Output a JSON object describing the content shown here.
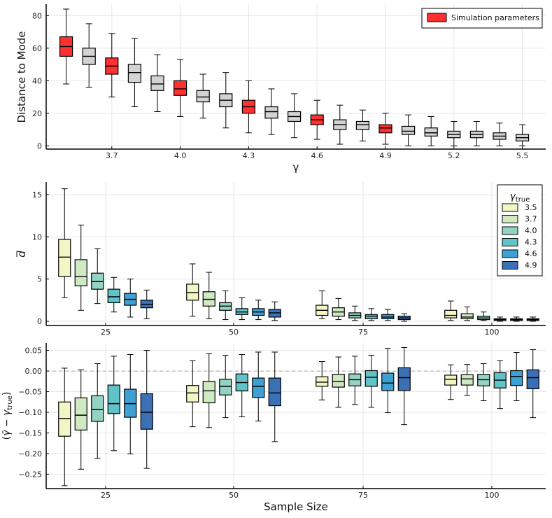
{
  "chart_data": [
    {
      "type": "box",
      "xlabel": "γ",
      "ylabel": "Distance to Mode",
      "ylim": [
        -2,
        87
      ],
      "yticks": [
        0,
        20,
        40,
        60,
        80
      ],
      "xticks": [
        "3.7",
        "4.0",
        "4.3",
        "4.6",
        "4.9",
        "5.2",
        "5.5"
      ],
      "legend": {
        "label": "Simulation parameters",
        "color": "#ff3030",
        "position": "top-right"
      },
      "highlight_color": "#ff3030",
      "default_color": "#d3d3d3",
      "boxes": [
        {
          "gamma": 3.5,
          "min": 38,
          "q1": 55,
          "median": 61,
          "q3": 67,
          "max": 84,
          "highlight": true
        },
        {
          "gamma": 3.6,
          "min": 36,
          "q1": 50,
          "median": 55,
          "q3": 60,
          "max": 75,
          "highlight": false
        },
        {
          "gamma": 3.7,
          "min": 30,
          "q1": 44,
          "median": 49,
          "q3": 54,
          "max": 69,
          "highlight": true
        },
        {
          "gamma": 3.8,
          "min": 24,
          "q1": 39,
          "median": 45,
          "q3": 50,
          "max": 66,
          "highlight": false
        },
        {
          "gamma": 3.9,
          "min": 21,
          "q1": 34,
          "median": 38,
          "q3": 43,
          "max": 56,
          "highlight": false
        },
        {
          "gamma": 4.0,
          "min": 18,
          "q1": 31,
          "median": 35,
          "q3": 40,
          "max": 53,
          "highlight": true
        },
        {
          "gamma": 4.1,
          "min": 17,
          "q1": 27,
          "median": 30,
          "q3": 34,
          "max": 44,
          "highlight": false
        },
        {
          "gamma": 4.2,
          "min": 11,
          "q1": 24,
          "median": 28,
          "q3": 32,
          "max": 45,
          "highlight": false
        },
        {
          "gamma": 4.3,
          "min": 8,
          "q1": 20,
          "median": 24,
          "q3": 28,
          "max": 40,
          "highlight": true
        },
        {
          "gamma": 4.4,
          "min": 7,
          "q1": 17,
          "median": 21,
          "q3": 24,
          "max": 35,
          "highlight": false
        },
        {
          "gamma": 4.5,
          "min": 5,
          "q1": 15,
          "median": 18,
          "q3": 21,
          "max": 32,
          "highlight": false
        },
        {
          "gamma": 4.6,
          "min": 4,
          "q1": 13,
          "median": 16,
          "q3": 19,
          "max": 28,
          "highlight": true
        },
        {
          "gamma": 4.7,
          "min": 1,
          "q1": 10,
          "median": 13,
          "q3": 16,
          "max": 25,
          "highlight": false
        },
        {
          "gamma": 4.8,
          "min": 3,
          "q1": 10,
          "median": 13,
          "q3": 15,
          "max": 22,
          "highlight": false
        },
        {
          "gamma": 4.9,
          "min": 1,
          "q1": 8,
          "median": 11,
          "q3": 13,
          "max": 20,
          "highlight": true
        },
        {
          "gamma": 5.0,
          "min": 0,
          "q1": 7,
          "median": 9,
          "q3": 12,
          "max": 19,
          "highlight": false
        },
        {
          "gamma": 5.1,
          "min": 0,
          "q1": 6,
          "median": 8,
          "q3": 11,
          "max": 18,
          "highlight": false
        },
        {
          "gamma": 5.2,
          "min": 0,
          "q1": 5,
          "median": 7,
          "q3": 9,
          "max": 15,
          "highlight": false
        },
        {
          "gamma": 5.3,
          "min": 0,
          "q1": 5,
          "median": 7,
          "q3": 9,
          "max": 15,
          "highlight": false
        },
        {
          "gamma": 5.4,
          "min": 0,
          "q1": 4,
          "median": 6,
          "q3": 8,
          "max": 14,
          "highlight": false
        },
        {
          "gamma": 5.5,
          "min": 0,
          "q1": 3,
          "median": 5,
          "q3": 7,
          "max": 13,
          "highlight": false
        }
      ]
    },
    {
      "type": "box",
      "xlabel": "",
      "ylabel": "d̄",
      "ylim": [
        -0.5,
        16.5
      ],
      "yticks": [
        0,
        5,
        10,
        15
      ],
      "xticks": [
        "25",
        "50",
        "75",
        "100"
      ],
      "legend_title": "γ_true",
      "legend_position": "top-right",
      "series": [
        {
          "name": "3.5",
          "color": "#f2f6c4"
        },
        {
          "name": "3.7",
          "color": "#cfe9c2"
        },
        {
          "name": "4.0",
          "color": "#94d3c1"
        },
        {
          "name": "4.3",
          "color": "#5fc3c8"
        },
        {
          "name": "4.6",
          "color": "#3ea0d3"
        },
        {
          "name": "4.9",
          "color": "#3b70b5"
        }
      ],
      "groups": [
        {
          "sample_size": "25",
          "boxes": [
            {
              "min": 2.8,
              "q1": 5.3,
              "median": 7.6,
              "q3": 9.7,
              "max": 15.7
            },
            {
              "min": 1.3,
              "q1": 4.2,
              "median": 5.3,
              "q3": 7.3,
              "max": 11.4
            },
            {
              "min": 2.1,
              "q1": 3.8,
              "median": 4.7,
              "q3": 5.7,
              "max": 8.6
            },
            {
              "min": 1.1,
              "q1": 2.2,
              "median": 2.9,
              "q3": 3.8,
              "max": 5.2
            },
            {
              "min": 0.5,
              "q1": 1.9,
              "median": 2.6,
              "q3": 3.3,
              "max": 5.0
            },
            {
              "min": 0.3,
              "q1": 1.6,
              "median": 2.0,
              "q3": 2.5,
              "max": 3.7
            }
          ]
        },
        {
          "sample_size": "50",
          "boxes": [
            {
              "min": 0.6,
              "q1": 2.5,
              "median": 3.4,
              "q3": 4.4,
              "max": 6.8
            },
            {
              "min": 0.3,
              "q1": 1.8,
              "median": 2.6,
              "q3": 3.5,
              "max": 5.8
            },
            {
              "min": 0.2,
              "q1": 1.3,
              "median": 1.8,
              "q3": 2.2,
              "max": 3.6
            },
            {
              "min": 0.2,
              "q1": 0.8,
              "median": 1.1,
              "q3": 1.5,
              "max": 2.8
            },
            {
              "min": 0.2,
              "q1": 0.7,
              "median": 1.1,
              "q3": 1.5,
              "max": 2.5
            },
            {
              "min": 0.1,
              "q1": 0.5,
              "median": 1.0,
              "q3": 1.4,
              "max": 2.3
            }
          ]
        },
        {
          "sample_size": "75",
          "boxes": [
            {
              "min": 0.3,
              "q1": 0.7,
              "median": 1.3,
              "q3": 1.9,
              "max": 3.6
            },
            {
              "min": 0.2,
              "q1": 0.6,
              "median": 1.1,
              "q3": 1.6,
              "max": 2.7
            },
            {
              "min": 0.1,
              "q1": 0.4,
              "median": 0.7,
              "q3": 1.0,
              "max": 1.8
            },
            {
              "min": 0.1,
              "q1": 0.3,
              "median": 0.6,
              "q3": 0.8,
              "max": 1.5
            },
            {
              "min": 0.1,
              "q1": 0.3,
              "median": 0.5,
              "q3": 0.8,
              "max": 1.4
            },
            {
              "min": 0.0,
              "q1": 0.2,
              "median": 0.4,
              "q3": 0.6,
              "max": 0.9
            }
          ]
        },
        {
          "sample_size": "100",
          "boxes": [
            {
              "min": 0.1,
              "q1": 0.4,
              "median": 0.7,
              "q3": 1.3,
              "max": 2.4
            },
            {
              "min": 0.1,
              "q1": 0.3,
              "median": 0.5,
              "q3": 0.9,
              "max": 1.7
            },
            {
              "min": 0.1,
              "q1": 0.2,
              "median": 0.4,
              "q3": 0.6,
              "max": 1.1
            },
            {
              "min": 0.0,
              "q1": 0.1,
              "median": 0.2,
              "q3": 0.3,
              "max": 0.5
            },
            {
              "min": 0.0,
              "q1": 0.1,
              "median": 0.2,
              "q3": 0.3,
              "max": 0.5
            },
            {
              "min": 0.0,
              "q1": 0.1,
              "median": 0.2,
              "q3": 0.3,
              "max": 0.5
            }
          ]
        }
      ]
    },
    {
      "type": "box",
      "xlabel": "Sample Size",
      "ylabel": "(γ̄ − γ_true)",
      "ylim": [
        -0.285,
        0.068
      ],
      "yticks": [
        -0.25,
        -0.2,
        -0.15,
        -0.1,
        -0.05,
        0.0,
        0.05
      ],
      "ytick_labels": [
        "−0.25",
        "−0.20",
        "−0.15",
        "−0.10",
        "−0.05",
        "0.00",
        "0.05"
      ],
      "xticks": [
        "25",
        "50",
        "75",
        "100"
      ],
      "reference_line": 0.0,
      "groups": [
        {
          "sample_size": "25",
          "boxes": [
            {
              "min": -0.278,
              "q1": -0.158,
              "median": -0.115,
              "q3": -0.075,
              "max": 0.007
            },
            {
              "min": -0.238,
              "q1": -0.143,
              "median": -0.107,
              "q3": -0.065,
              "max": 0.003
            },
            {
              "min": -0.212,
              "q1": -0.122,
              "median": -0.093,
              "q3": -0.06,
              "max": 0.018
            },
            {
              "min": -0.193,
              "q1": -0.103,
              "median": -0.079,
              "q3": -0.034,
              "max": 0.036
            },
            {
              "min": -0.201,
              "q1": -0.112,
              "median": -0.079,
              "q3": -0.044,
              "max": 0.04
            },
            {
              "min": -0.236,
              "q1": -0.141,
              "median": -0.1,
              "q3": -0.055,
              "max": 0.05
            }
          ]
        },
        {
          "sample_size": "50",
          "boxes": [
            {
              "min": -0.135,
              "q1": -0.075,
              "median": -0.053,
              "q3": -0.035,
              "max": 0.025
            },
            {
              "min": -0.137,
              "q1": -0.077,
              "median": -0.048,
              "q3": -0.025,
              "max": 0.042
            },
            {
              "min": -0.113,
              "q1": -0.058,
              "median": -0.037,
              "q3": -0.02,
              "max": 0.038
            },
            {
              "min": -0.111,
              "q1": -0.048,
              "median": -0.028,
              "q3": -0.007,
              "max": 0.04
            },
            {
              "min": -0.121,
              "q1": -0.064,
              "median": -0.037,
              "q3": -0.017,
              "max": 0.046
            },
            {
              "min": -0.171,
              "q1": -0.084,
              "median": -0.053,
              "q3": -0.017,
              "max": 0.046
            }
          ]
        },
        {
          "sample_size": "75",
          "boxes": [
            {
              "min": -0.07,
              "q1": -0.037,
              "median": -0.027,
              "q3": -0.014,
              "max": 0.023
            },
            {
              "min": -0.088,
              "q1": -0.039,
              "median": -0.025,
              "q3": -0.008,
              "max": 0.034
            },
            {
              "min": -0.081,
              "q1": -0.036,
              "median": -0.021,
              "q3": -0.007,
              "max": 0.036
            },
            {
              "min": -0.088,
              "q1": -0.037,
              "median": -0.015,
              "q3": 0.001,
              "max": 0.038
            },
            {
              "min": -0.101,
              "q1": -0.047,
              "median": -0.029,
              "q3": -0.005,
              "max": 0.055
            },
            {
              "min": -0.13,
              "q1": -0.047,
              "median": -0.016,
              "q3": 0.008,
              "max": 0.057
            }
          ]
        },
        {
          "sample_size": "100",
          "boxes": [
            {
              "min": -0.069,
              "q1": -0.034,
              "median": -0.02,
              "q3": -0.01,
              "max": 0.015
            },
            {
              "min": -0.059,
              "q1": -0.034,
              "median": -0.019,
              "q3": -0.009,
              "max": 0.016
            },
            {
              "min": -0.072,
              "q1": -0.036,
              "median": -0.021,
              "q3": -0.008,
              "max": 0.018
            },
            {
              "min": -0.091,
              "q1": -0.041,
              "median": -0.022,
              "q3": -0.004,
              "max": 0.025
            },
            {
              "min": -0.072,
              "q1": -0.035,
              "median": -0.013,
              "q3": 0.001,
              "max": 0.045
            },
            {
              "min": -0.113,
              "q1": -0.043,
              "median": -0.016,
              "q3": 0.003,
              "max": 0.052
            }
          ]
        }
      ]
    }
  ]
}
